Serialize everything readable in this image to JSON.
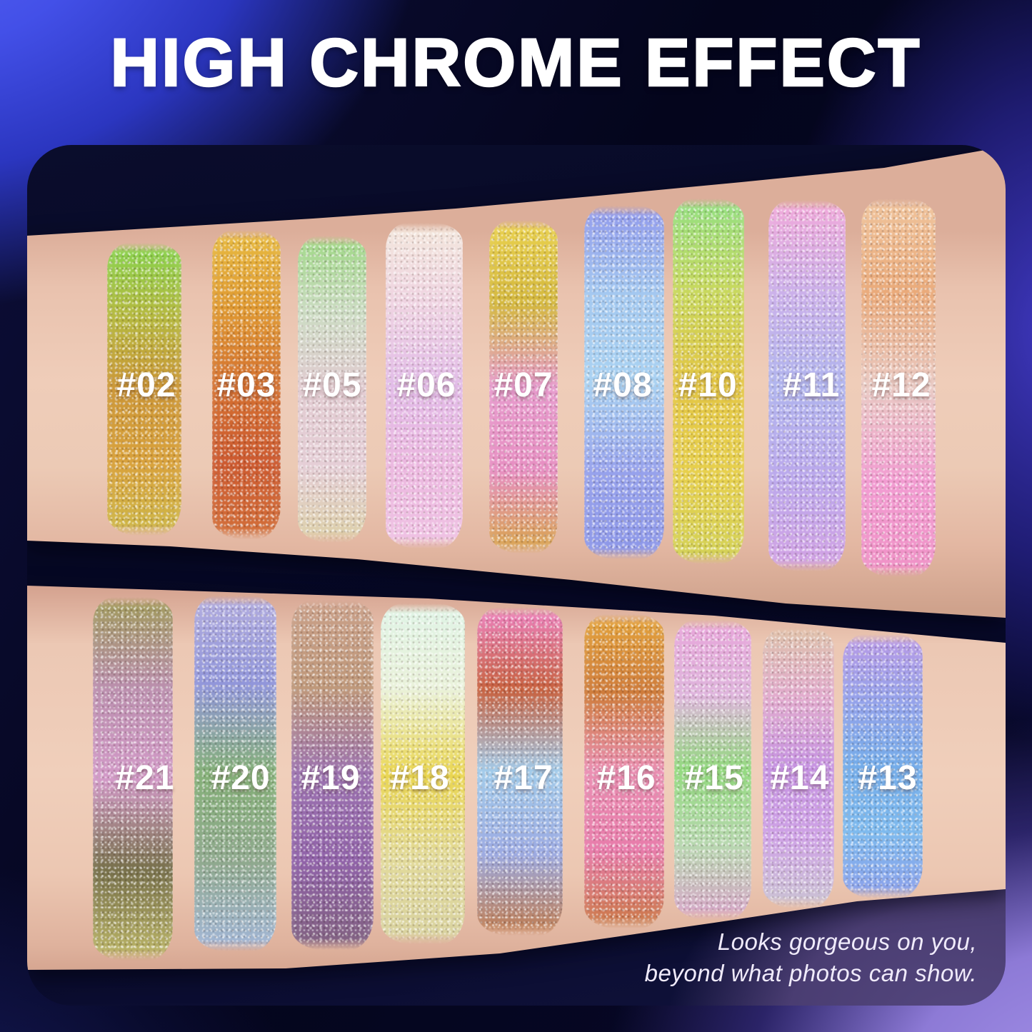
{
  "title": "HIGH CHROME EFFECT",
  "caption": {
    "line1": "Looks gorgeous on you,",
    "line2": "beyond what photos can show."
  },
  "rows": [
    {
      "name": "top-arm",
      "swatches": [
        {
          "label": "#02",
          "colors": [
            "#86d44e",
            "#b5b93f",
            "#cc9636",
            "#d9a23c",
            "#cdb848"
          ]
        },
        {
          "label": "#03",
          "colors": [
            "#e8bc42",
            "#e09a32",
            "#d57231",
            "#cd5a30",
            "#d3703a"
          ]
        },
        {
          "label": "#05",
          "colors": [
            "#9ed884",
            "#ccdcc3",
            "#e2cbd1",
            "#e5ced6",
            "#dcd0a6"
          ]
        },
        {
          "label": "#06",
          "colors": [
            "#f4e8dc",
            "#efd3e2",
            "#e2bbe8",
            "#ecb8e0",
            "#f0c3e4"
          ]
        },
        {
          "label": "#07",
          "colors": [
            "#ead24f",
            "#d4b83e",
            "#e79bcd",
            "#e78fc2",
            "#d8a646"
          ]
        },
        {
          "label": "#08",
          "colors": [
            "#9199ec",
            "#a3c8f0",
            "#a9d2f2",
            "#97a2ec",
            "#8c96e8"
          ]
        },
        {
          "label": "#10",
          "colors": [
            "#92e083",
            "#c8d95e",
            "#e3c644",
            "#e7d04d",
            "#d2d258"
          ]
        },
        {
          "label": "#11",
          "colors": [
            "#f2a9da",
            "#cbb0ea",
            "#b0b4ee",
            "#bba8ec",
            "#d4a2e4"
          ]
        },
        {
          "label": "#12",
          "colors": [
            "#f0c49c",
            "#eaaa7a",
            "#eacac4",
            "#f29cd2",
            "#f092c6"
          ]
        }
      ]
    },
    {
      "name": "bottom-arm",
      "swatches": [
        {
          "label": "#21",
          "colors": [
            "#9f9a58",
            "#bb8fae",
            "#d39ac8",
            "#77704a",
            "#bfb968"
          ]
        },
        {
          "label": "#20",
          "colors": [
            "#b2acdf",
            "#9196da",
            "#84b077",
            "#8fa98e",
            "#a2b6da"
          ]
        },
        {
          "label": "#19",
          "colors": [
            "#caa089",
            "#bf987a",
            "#9c72b0",
            "#9062a8",
            "#80617e"
          ]
        },
        {
          "label": "#18",
          "colors": [
            "#dff4e6",
            "#eaf2da",
            "#ead650",
            "#e2da9a",
            "#d8d2a0"
          ]
        },
        {
          "label": "#17",
          "colors": [
            "#ee82c2",
            "#c8613f",
            "#a2cbea",
            "#9caae2",
            "#c27a49"
          ]
        },
        {
          "label": "#16",
          "colors": [
            "#e4a43b",
            "#cf7c3b",
            "#ea8eb2",
            "#e87cab",
            "#ca7841"
          ]
        },
        {
          "label": "#15",
          "colors": [
            "#e8a5da",
            "#dfb5dd",
            "#92da7e",
            "#b8d8b0",
            "#d9a3ca"
          ]
        },
        {
          "label": "#14",
          "colors": [
            "#dec2aa",
            "#e2abce",
            "#c693e2",
            "#cfa3e6",
            "#cac4d2"
          ]
        },
        {
          "label": "#13",
          "colors": [
            "#ba9ae6",
            "#95a2ea",
            "#74ace9",
            "#7ebaee",
            "#8c9eea"
          ]
        }
      ]
    }
  ],
  "colors": {
    "page_blue": "#4a55e8",
    "page_navy": "#05051e",
    "page_purple": "#9b87e0",
    "photo_background": "#0a0d2c",
    "photo_purple": "#4a3d72",
    "skin": "#ecc8b4",
    "text": "#ffffff"
  }
}
